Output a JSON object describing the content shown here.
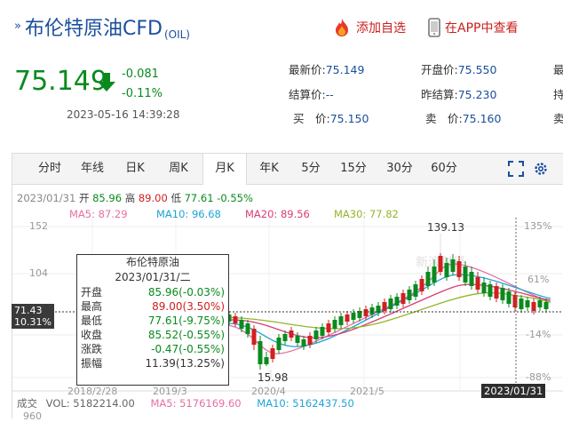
{
  "header": {
    "title": "布伦特原油CFD",
    "title_sub": "(OIL)",
    "add_watch": "添加自选",
    "view_app": "在APP中查看"
  },
  "quote": {
    "price": "75.149",
    "change": "-0.081",
    "change_pct": "-0.11%",
    "datetime": "2023-05-16 14:39:28",
    "fields": [
      {
        "label": "最新价:",
        "value": "75.149"
      },
      {
        "label": "开盘价:",
        "value": "75.550"
      },
      {
        "label": "结算价:",
        "value": "--"
      },
      {
        "label": "昨结算:",
        "value": "75.230"
      },
      {
        "label": "买　价:",
        "value": "75.150"
      },
      {
        "label": "卖　价:",
        "value": "75.160"
      }
    ],
    "edge_labels": [
      "最",
      "持",
      "卖"
    ]
  },
  "tabs": [
    "分时",
    "年线",
    "日K",
    "周K",
    "月K",
    "年K",
    "5分",
    "15分",
    "30分",
    "60分"
  ],
  "active_tab": "月K",
  "info_line": {
    "date": "2023/01/31",
    "open_label": "开",
    "open": "85.96",
    "high_label": "高",
    "high": "89.00",
    "low_label": "低",
    "low": "77.61",
    "chg": "-0.55%"
  },
  "ma_line": {
    "ma5": "MA5: 87.29",
    "ma10": "MA10: 96.68",
    "ma20": "MA20: 89.56",
    "ma30": "MA30: 77.82"
  },
  "ma_colors": {
    "ma5": "#e86ea3",
    "ma10": "#1fa4d8",
    "ma20": "#d83c78",
    "ma30": "#93b52c"
  },
  "tooltip": {
    "title": "布伦特原油",
    "date": "2023/01/31/二",
    "rows": [
      {
        "label": "开盘",
        "value": "85.96(-0.03%)",
        "color": "#0a8a1e"
      },
      {
        "label": "最高",
        "value": "89.00(3.50%)",
        "color": "#d02020"
      },
      {
        "label": "最低",
        "value": "77.61(-9.75%)",
        "color": "#0a8a1e"
      },
      {
        "label": "收盘",
        "value": "85.52(-0.55%)",
        "color": "#0a8a1e"
      },
      {
        "label": "涨跌",
        "value": "-0.47(-0.55%)",
        "color": "#0a8a1e"
      },
      {
        "label": "振幅",
        "value": "11.39(13.25%)",
        "color": "#333333"
      }
    ]
  },
  "axis": {
    "y_left": [
      "152",
      "104"
    ],
    "y_right": [
      "135%",
      "61%",
      "-14%",
      "-88%"
    ],
    "x": [
      "2018/2/28",
      "2019/3",
      "2020/4",
      "2021/5"
    ],
    "cur_price": "71.43",
    "cur_pct": "10.31%",
    "high_label": "139.13",
    "low_label": "15.98",
    "cursor_date": "2023/01/31"
  },
  "volume": {
    "label": "成交",
    "vol": "VOL: 5182214.00",
    "ma5": "MA5: 5176169.60",
    "ma10": "MA10: 5162437.50",
    "bottom_tick": "960"
  },
  "watermark": "新浪财经"
}
